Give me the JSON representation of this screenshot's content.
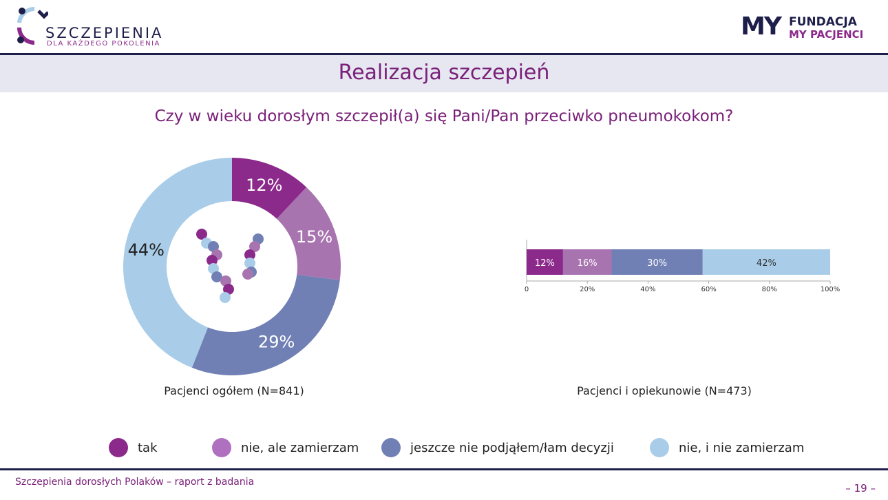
{
  "header": {
    "logo_title": "SZCZEPIENIA",
    "logo_subtitle": "DLA KAŻDEGO POKOLENIA",
    "partner_logo_line1": "FUNDACJA",
    "partner_logo_line2": "MY PACJENCI",
    "partner_logo_mark": "MY"
  },
  "title": "Realizacja szczepień",
  "question": "Czy w wieku dorosłym szczepił(a) się Pani/Pan przeciwko pneumokokom?",
  "legend": [
    {
      "label": "tak",
      "color": "#8b2a8b"
    },
    {
      "label": "nie, ale zamierzam",
      "color": "#b070c0"
    },
    {
      "label": "jeszcze nie podjąłem/łam decyzji",
      "color": "#7080b5"
    },
    {
      "label": "nie, i nie zamierzam",
      "color": "#a9cde8"
    }
  ],
  "chart_data": [
    {
      "type": "pie",
      "donut": true,
      "caption": "Pacjenci ogółem (N=841)",
      "categories": [
        "tak",
        "nie, ale zamierzam",
        "jeszcze nie podjąłem/łam decyzji",
        "nie, i nie zamierzam"
      ],
      "values": [
        12,
        15,
        29,
        44
      ],
      "labels": [
        "12%",
        "15%",
        "29%",
        "44%"
      ],
      "colors": [
        "#8b2a8b",
        "#a874b0",
        "#7080b5",
        "#a9cde8"
      ]
    },
    {
      "type": "bar",
      "stacked": true,
      "orientation": "horizontal",
      "caption": "Pacjenci i opiekunowie (N=473)",
      "categories": [
        "tak",
        "nie, ale zamierzam",
        "jeszcze nie podjąłem/łam decyzji",
        "nie, i nie zamierzam"
      ],
      "values": [
        12,
        16,
        30,
        42
      ],
      "labels": [
        "12%",
        "16%",
        "30%",
        "42%"
      ],
      "colors": [
        "#8b2a8b",
        "#a874b0",
        "#7080b5",
        "#a9cde8"
      ],
      "xlim": [
        0,
        100
      ],
      "xticks": [
        "0",
        "20%",
        "40%",
        "60%",
        "80%",
        "100%"
      ]
    }
  ],
  "footer": {
    "text": "Szczepienia dorosłych Polaków – raport z badania",
    "page": "– 19 –"
  }
}
